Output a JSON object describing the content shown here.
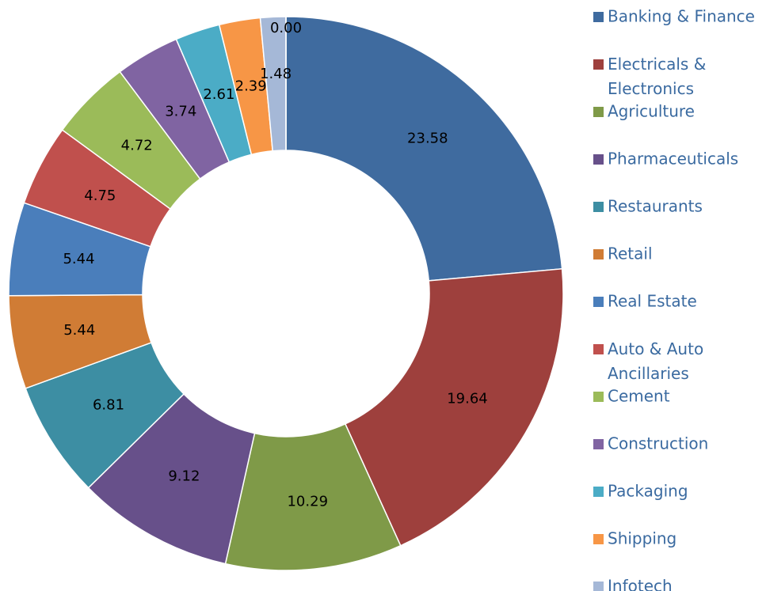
{
  "chart_data": {
    "type": "pie",
    "donut": true,
    "categories": [
      "Banking & Finance",
      "Electricals & Electronics",
      "Agriculture",
      "Pharmaceuticals",
      "Restaurants",
      "Retail",
      "Real Estate",
      "Auto & Auto Ancillaries",
      "Cement",
      "Construction",
      "Packaging",
      "Shipping",
      "Infotech",
      null
    ],
    "values": [
      23.58,
      19.64,
      10.29,
      9.12,
      6.81,
      5.44,
      5.44,
      4.75,
      4.72,
      3.74,
      2.61,
      2.39,
      1.48,
      0
    ],
    "value_labels": [
      "23.58",
      "19.64",
      "10.29",
      "9.12",
      "6.81",
      "5.44",
      "5.44",
      "4.75",
      "4.72",
      "3.74",
      "2.61",
      "2.39",
      "1.48",
      "0.00"
    ],
    "colors": [
      "#3f6b9f",
      "#9e403d",
      "#7f9a48",
      "#67508a",
      "#3d8ea3",
      "#d07c35",
      "#4a7ebb",
      "#c0504d",
      "#9bbb59",
      "#8064a2",
      "#4bacc6",
      "#f79646",
      "#a5b8d7",
      "#c6d0e2"
    ],
    "legend": "right"
  }
}
